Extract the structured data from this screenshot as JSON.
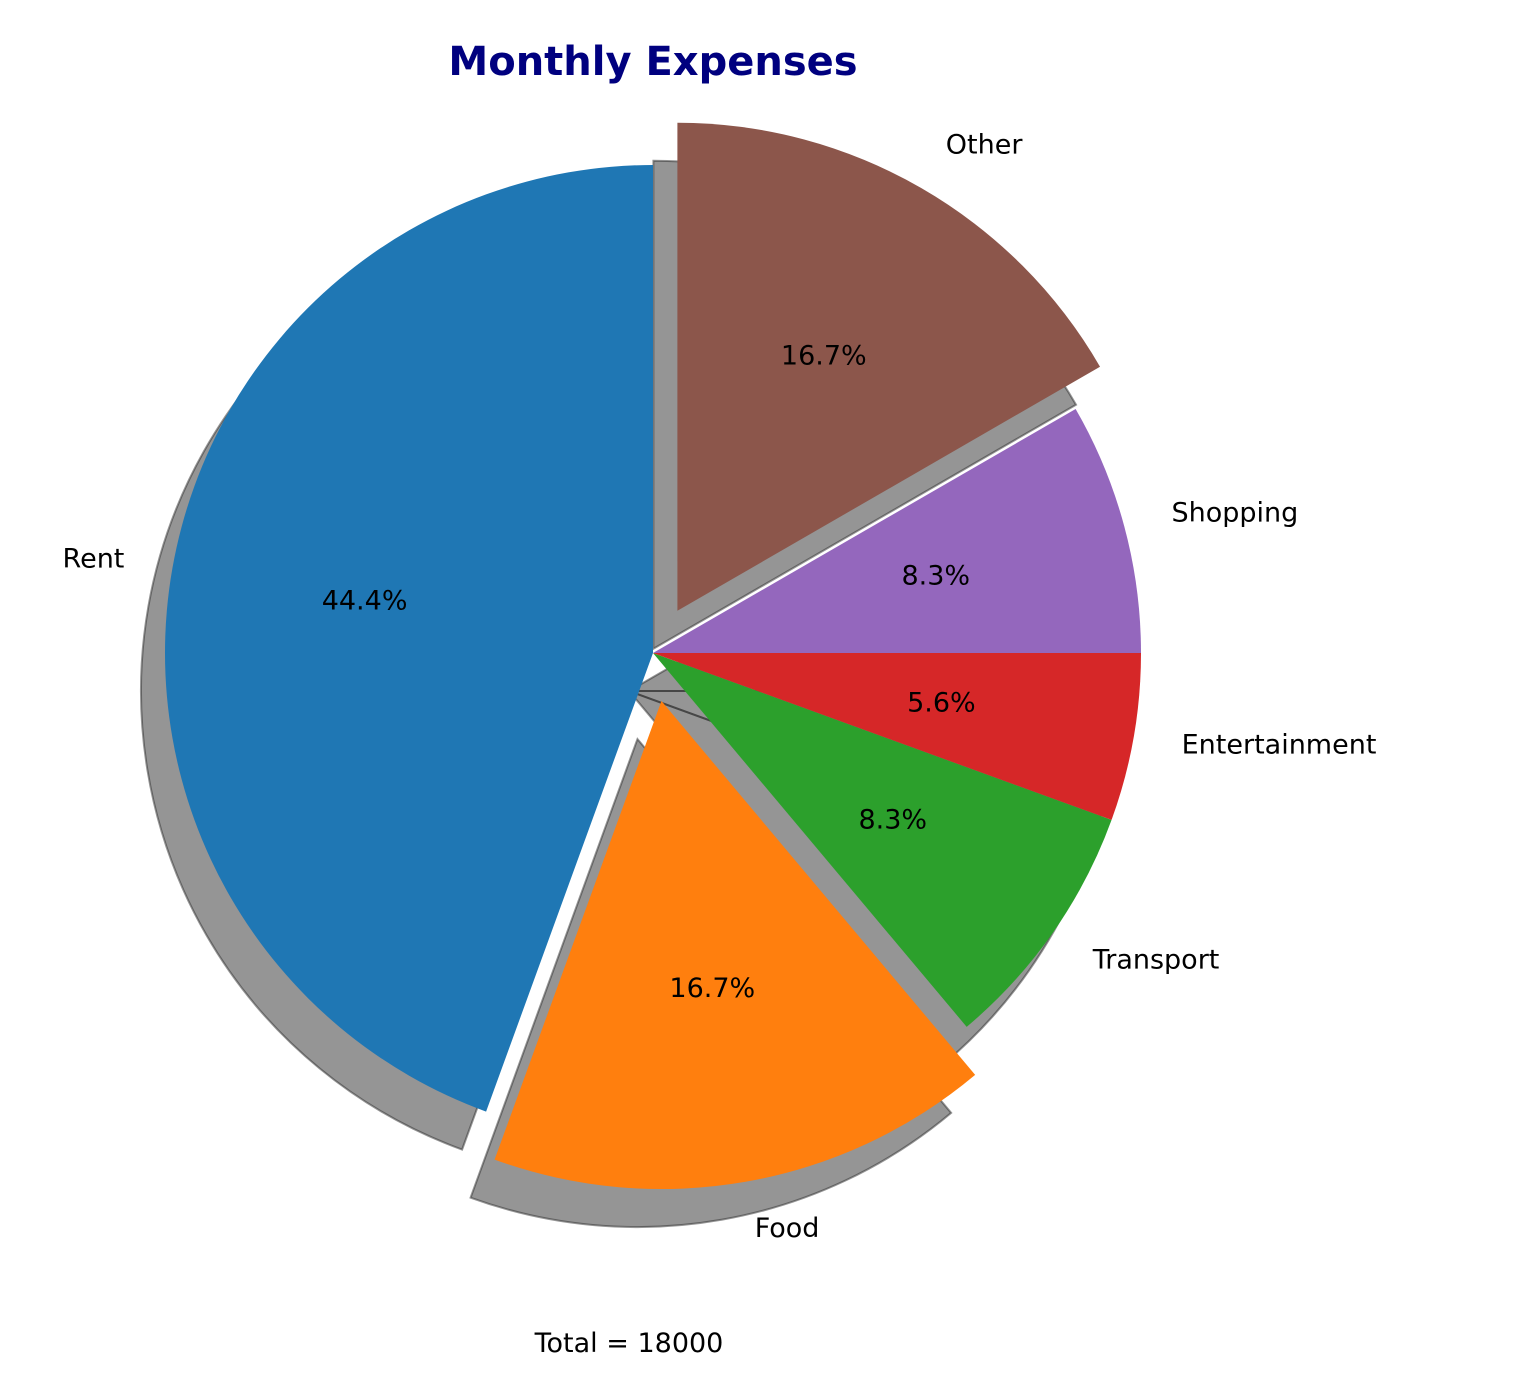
{
  "chart_data": {
    "type": "pie",
    "title": "Monthly Expenses",
    "categories": [
      "Rent",
      "Food",
      "Transport",
      "Entertainment",
      "Shopping",
      "Other"
    ],
    "values": [
      8000,
      3000,
      1500,
      1000,
      1500,
      3000
    ],
    "percent_labels": [
      "44.4%",
      "16.7%",
      "8.3%",
      "5.6%",
      "8.3%",
      "16.7%"
    ],
    "colors": [
      "#1f77b4",
      "#ff7f0e",
      "#2ca02c",
      "#d62728",
      "#9467bd",
      "#8c564b"
    ],
    "exploded": [
      false,
      true,
      false,
      false,
      false,
      true
    ],
    "shadow": true,
    "start_angle_deg": 90,
    "direction": "counterclockwise",
    "footer": "Total = 18000",
    "title_color": "#00007f"
  }
}
